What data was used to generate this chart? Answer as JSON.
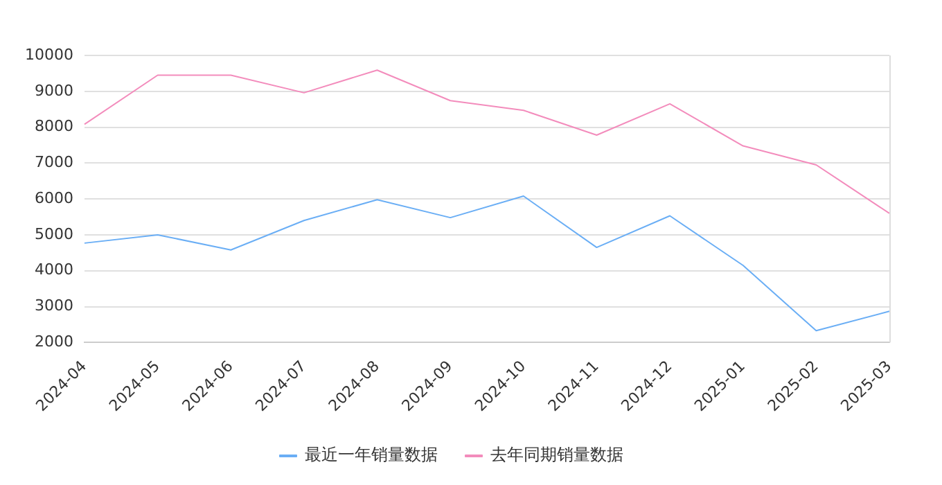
{
  "chart_data": {
    "type": "line",
    "categories": [
      "2024-04",
      "2024-05",
      "2024-06",
      "2024-07",
      "2024-08",
      "2024-09",
      "2024-10",
      "2024-11",
      "2024-12",
      "2025-01",
      "2025-02",
      "2025-03"
    ],
    "series": [
      {
        "name": "最近一年销量数据",
        "color": "#6aaef5",
        "values": [
          4770,
          5000,
          4580,
          5400,
          5980,
          5480,
          6080,
          4650,
          5530,
          4150,
          2330,
          2870
        ]
      },
      {
        "name": "去年同期销量数据",
        "color": "#f38cbc",
        "values": [
          8080,
          9450,
          9450,
          8960,
          9590,
          8740,
          8470,
          7780,
          8650,
          7480,
          6950,
          5600
        ]
      }
    ],
    "ylim": [
      2000,
      10000
    ],
    "yticks": [
      2000,
      3000,
      4000,
      5000,
      6000,
      7000,
      8000,
      9000,
      10000
    ],
    "grid": "y",
    "legend": "bottom",
    "marker": "none",
    "line_style": "solid"
  }
}
